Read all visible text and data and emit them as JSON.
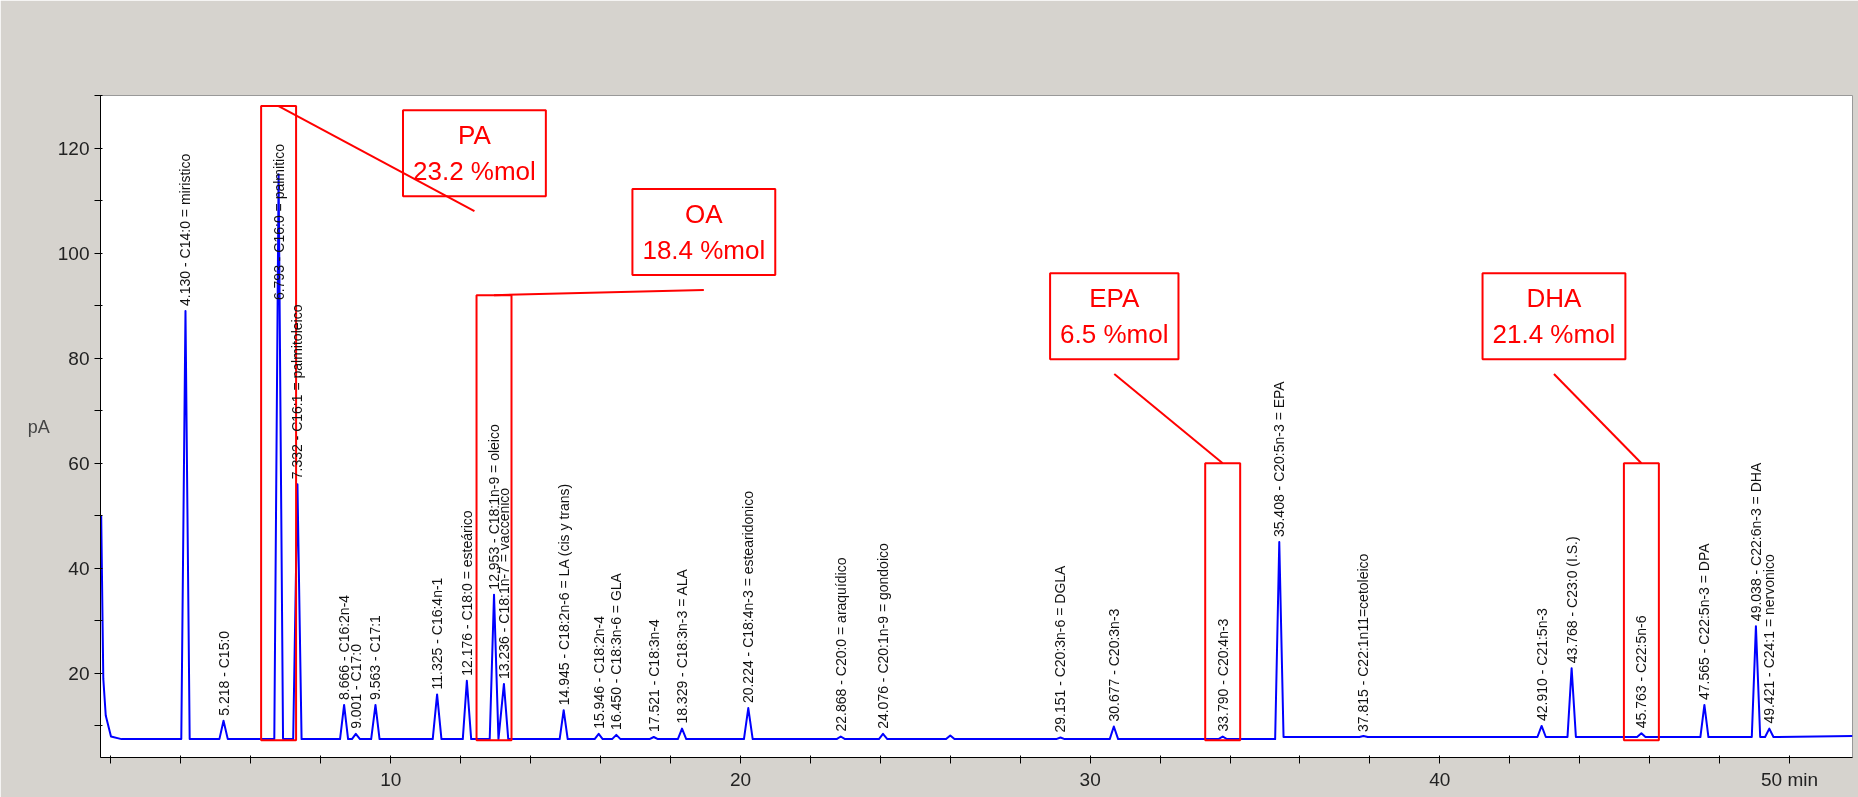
{
  "chart_data": {
    "type": "line",
    "ylabel": "pA",
    "xlim": [
      1.7,
      51.8
    ],
    "ylim": [
      4,
      130
    ],
    "xticks": [
      {
        "value": 2,
        "label": null
      },
      {
        "value": 4,
        "label": null
      },
      {
        "value": 6,
        "label": null
      },
      {
        "value": 8,
        "label": null
      },
      10,
      {
        "value": 12,
        "label": null
      },
      {
        "value": 14,
        "label": null
      },
      {
        "value": 16,
        "label": null
      },
      {
        "value": 18,
        "label": null
      },
      20,
      {
        "value": 22,
        "label": null
      },
      {
        "value": 24,
        "label": null
      },
      {
        "value": 26,
        "label": null
      },
      {
        "value": 28,
        "label": null
      },
      30,
      {
        "value": 32,
        "label": null
      },
      {
        "value": 34,
        "label": null
      },
      {
        "value": 36,
        "label": null
      },
      {
        "value": 38,
        "label": null
      },
      40,
      {
        "value": 42,
        "label": null
      },
      {
        "value": 44,
        "label": null
      },
      {
        "value": 46,
        "label": null
      },
      {
        "value": 48,
        "label": null
      },
      {
        "value": 50,
        "label": "50 min"
      }
    ],
    "yticks": [
      {
        "value": 10,
        "label": null
      },
      20,
      {
        "value": 30,
        "label": null
      },
      40,
      {
        "value": 50,
        "label": null
      },
      60,
      {
        "value": 70,
        "label": null
      },
      80,
      {
        "value": 90,
        "label": null
      },
      100,
      {
        "value": 110,
        "label": null
      },
      120,
      {
        "value": 130,
        "label": null
      }
    ],
    "grid": false,
    "marker": "none",
    "line_style": "solid",
    "series": [
      {
        "color": "#0000ff",
        "x": [
          1.72,
          1.78,
          1.85,
          2.0,
          2.3,
          4.01,
          4.13,
          4.25,
          5.1,
          5.218,
          5.34,
          6.67,
          6.793,
          6.92,
          7.21,
          7.332,
          7.45,
          8.55,
          8.666,
          8.78,
          8.89,
          9.001,
          9.12,
          9.44,
          9.563,
          9.68,
          11.2,
          11.325,
          11.45,
          12.06,
          12.176,
          12.3,
          12.83,
          12.953,
          13.08,
          13.236,
          13.36,
          14.83,
          14.945,
          15.06,
          15.83,
          15.946,
          16.06,
          16.33,
          16.45,
          16.57,
          17.4,
          17.521,
          17.64,
          18.21,
          18.329,
          18.45,
          20.1,
          20.224,
          20.35,
          22.75,
          22.868,
          22.99,
          23.96,
          24.076,
          24.2,
          25.88,
          26.0,
          26.12,
          29.03,
          29.151,
          29.27,
          30.56,
          30.677,
          30.8,
          33.67,
          33.79,
          33.91,
          35.29,
          35.408,
          35.53,
          37.7,
          37.815,
          37.94,
          42.79,
          42.91,
          43.03,
          43.65,
          43.768,
          43.89,
          45.64,
          45.763,
          45.88,
          47.45,
          47.565,
          47.68,
          48.92,
          49.038,
          49.16,
          49.3,
          49.421,
          49.54,
          51.8
        ],
        "values": [
          50,
          19,
          12,
          8,
          7.5,
          7.5,
          89,
          7.5,
          7.5,
          11,
          7.5,
          7.5,
          115,
          7.5,
          7.5,
          56,
          7.5,
          7.5,
          14,
          7.5,
          7.5,
          8.5,
          7.5,
          7.5,
          14,
          7.5,
          7.5,
          16,
          7.5,
          7.5,
          18.6,
          7.5,
          7.5,
          35,
          7.5,
          18,
          7.5,
          7.5,
          13,
          7.5,
          7.5,
          8.5,
          7.5,
          7.5,
          8.3,
          7.5,
          7.5,
          7.9,
          7.5,
          7.5,
          9.5,
          7.5,
          7.5,
          13.4,
          7.5,
          7.5,
          8,
          7.5,
          7.5,
          8.5,
          7.5,
          7.5,
          8.2,
          7.5,
          7.5,
          7.8,
          7.5,
          7.5,
          9.9,
          7.5,
          7.5,
          8,
          7.5,
          7.5,
          45,
          7.9,
          7.9,
          8.1,
          7.9,
          7.9,
          10,
          7.9,
          7.9,
          21,
          7.9,
          7.9,
          8.6,
          7.9,
          7.9,
          14,
          7.9,
          7.9,
          29,
          7.9,
          7.9,
          9.5,
          7.9,
          8.1
        ]
      }
    ],
    "annotations": [
      {
        "text": "4.130 - C14:0 = miristico",
        "x": 4.13,
        "y": 89
      },
      {
        "text": "5.218 - C15:0",
        "x": 5.218,
        "y": 11
      },
      {
        "text": "6.793 - C16:0 = palmitico",
        "x": 6.793,
        "y": 115
      },
      {
        "text": "7.332 - C16:1 = palmitoleico",
        "x": 7.332,
        "y": 56
      },
      {
        "text": "8.666 - C16:2n-4",
        "x": 8.666,
        "y": 14
      },
      {
        "text": "9.001 - C17:0",
        "x": 9.001,
        "y": 8.5
      },
      {
        "text": "9.563 - C17:1",
        "x": 9.563,
        "y": 14
      },
      {
        "text": "11.325 - C16:4n-1",
        "x": 11.325,
        "y": 16
      },
      {
        "text": "12.176 - C18:0 = esteárico",
        "x": 12.176,
        "y": 18.6
      },
      {
        "text": "12.953 - C18:1n-9 = oleico",
        "x": 12.953,
        "y": 35
      },
      {
        "text": "13.236 - C18:1n-7 = vaccenico",
        "x": 13.236,
        "y": 18
      },
      {
        "text": "14.945 - C18:2n-6 = LA (cis y trans)",
        "x": 14.945,
        "y": 13
      },
      {
        "text": "15.946 - C18:2n-4",
        "x": 15.946,
        "y": 8.5
      },
      {
        "text": "16.450 - C18:3n-6 = GLA",
        "x": 16.45,
        "y": 8.3
      },
      {
        "text": "17.521 - C18:3n-4",
        "x": 17.521,
        "y": 7.9
      },
      {
        "text": "18.329 - C18:3n-3 = ALA",
        "x": 18.329,
        "y": 9.5
      },
      {
        "text": "20.224 - C18:4n-3 = estearidonico",
        "x": 20.224,
        "y": 13.4
      },
      {
        "text": "22.868 - C20:0 = araquídico",
        "x": 22.868,
        "y": 8
      },
      {
        "text": "24.076 - C20:1n-9 = gondoico",
        "x": 24.076,
        "y": 8.5
      },
      {
        "text": "29.151 - C20:3n-6 = DGLA",
        "x": 29.151,
        "y": 7.8
      },
      {
        "text": "30.677 - C20:3n-3",
        "x": 30.677,
        "y": 9.9
      },
      {
        "text": "33.790 - C20:4n-3",
        "x": 33.79,
        "y": 8
      },
      {
        "text": "35.408 - C20:5n-3 = EPA",
        "x": 35.408,
        "y": 45
      },
      {
        "text": "37.815 - C22:1n11=cetoleico",
        "x": 37.815,
        "y": 7.9
      },
      {
        "text": "42.910 - C21:5n-3",
        "x": 42.91,
        "y": 10
      },
      {
        "text": "43.768 - C23:0 (I.S.)",
        "x": 43.768,
        "y": 21
      },
      {
        "text": "45.763 - C22:5n-6",
        "x": 45.763,
        "y": 8.6
      },
      {
        "text": "47.565 - C22:5n-3 = DPA",
        "x": 47.565,
        "y": 14
      },
      {
        "text": "49.038 - C22:6n-3 = DHA",
        "x": 49.038,
        "y": 29
      },
      {
        "text": "49.421 - C24:1 = nervonico",
        "x": 49.421,
        "y": 9.5
      },
      "PA\n23.2 %mol",
      "OA\n18.4 %mol",
      "EPA\n6.5 %mol",
      "DHA\n21.4 %mol"
    ]
  }
}
